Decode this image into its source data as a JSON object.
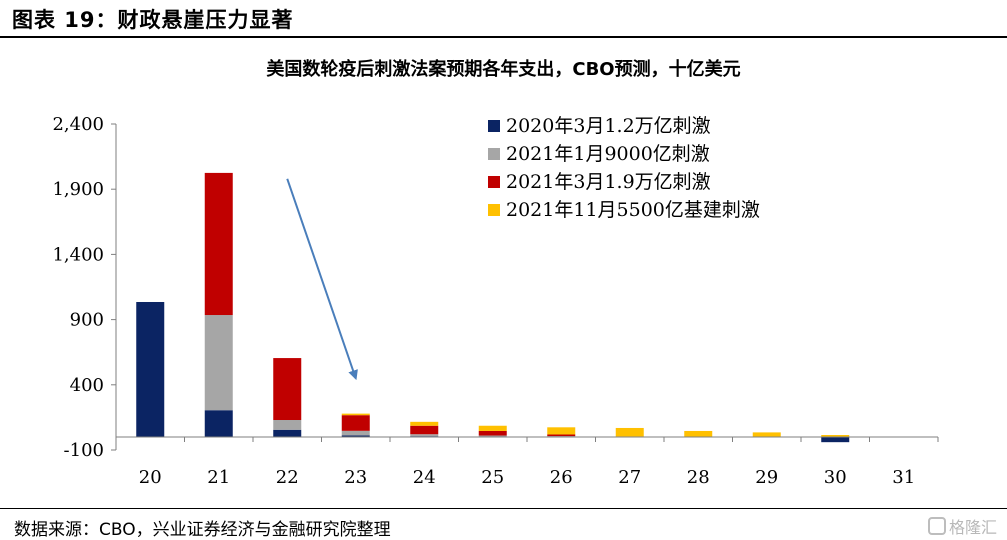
{
  "figure": {
    "label": "图表 19：财政悬崖压力显著",
    "source": "数据来源：CBO，兴业证券经济与金融研究院整理",
    "watermark": "格隆汇"
  },
  "chart_data": {
    "type": "bar",
    "stacked": true,
    "title": "美国数轮疫后刺激法案预期各年支出，CBO预测，十亿美元",
    "xlabel": "",
    "ylabel": "",
    "categories": [
      "20",
      "21",
      "22",
      "23",
      "24",
      "25",
      "26",
      "27",
      "28",
      "29",
      "30",
      "31"
    ],
    "ylim": [
      -100,
      2400
    ],
    "yticks": [
      -100,
      400,
      900,
      1400,
      1900,
      2400
    ],
    "ytick_labels": [
      "-100",
      "400",
      "900",
      "1,400",
      "1,900",
      "2,400"
    ],
    "grid": false,
    "legend_position": "top-right",
    "series": [
      {
        "name": "2020年3月1.2万亿刺激",
        "color": "#0b2463",
        "values": [
          1035,
          205,
          55,
          12,
          6,
          3,
          2,
          1,
          1,
          0,
          -40,
          0
        ]
      },
      {
        "name": "2021年1月9000亿刺激",
        "color": "#a6a6a6",
        "values": [
          0,
          730,
          75,
          35,
          15,
          8,
          5,
          3,
          0,
          0,
          0,
          0
        ]
      },
      {
        "name": "2021年3月1.9万亿刺激",
        "color": "#c00000",
        "values": [
          0,
          1090,
          475,
          120,
          65,
          35,
          12,
          0,
          0,
          0,
          0,
          0
        ]
      },
      {
        "name": "2021年11月5500亿基建刺激",
        "color": "#ffc000",
        "values": [
          0,
          0,
          0,
          12,
          30,
          40,
          55,
          65,
          45,
          35,
          15,
          0
        ]
      }
    ],
    "annotations": [
      {
        "type": "arrow",
        "from": {
          "x": "22",
          "y": 1980
        },
        "to": {
          "x": "23",
          "y": 450
        },
        "color": "#4a7ebb"
      }
    ]
  }
}
